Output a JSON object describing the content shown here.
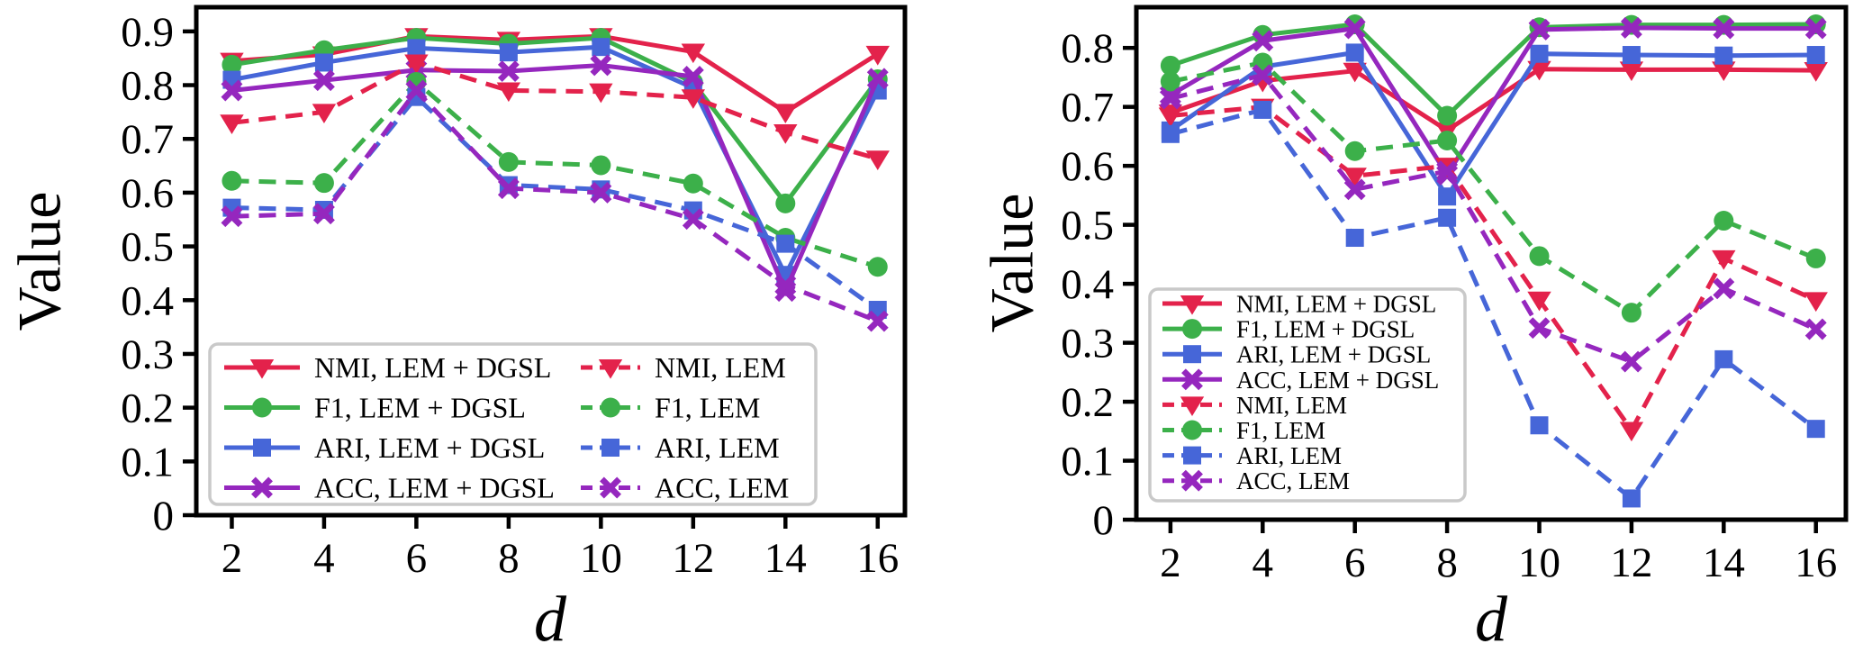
{
  "chart_data": [
    {
      "type": "line",
      "title": "",
      "xlabel": "d",
      "ylabel": "Value",
      "x": [
        2,
        4,
        6,
        8,
        10,
        12,
        14,
        16
      ],
      "xticklabels": [
        "2",
        "4",
        "6",
        "8",
        "10",
        "12",
        "14",
        "16"
      ],
      "yticks": [
        0,
        0.1,
        0.2,
        0.3,
        0.4,
        0.5,
        0.6,
        0.7,
        0.8,
        0.9
      ],
      "yticklabels": [
        "0",
        "0.1",
        "0.2",
        "0.3",
        "0.4",
        "0.5",
        "0.6",
        "0.7",
        "0.8",
        "0.9"
      ],
      "xlim": [
        1.23,
        16.59
      ],
      "ylim": [
        0,
        0.945
      ],
      "grid": false,
      "legend": {
        "position": "lower left",
        "columns": 2
      },
      "series": [
        {
          "name": "NMI, LEM + DGSL",
          "color": "#E3224B",
          "linestyle": "solid",
          "marker": "triangle-down",
          "values": [
            0.845,
            0.857,
            0.891,
            0.884,
            0.891,
            0.862,
            0.75,
            0.858
          ]
        },
        {
          "name": "F1, LEM + DGSL",
          "color": "#3CB04A",
          "linestyle": "solid",
          "marker": "circle",
          "values": [
            0.838,
            0.865,
            0.888,
            0.877,
            0.888,
            0.805,
            0.58,
            0.811
          ]
        },
        {
          "name": "ARI, LEM + DGSL",
          "color": "#4666D8",
          "linestyle": "solid",
          "marker": "square",
          "values": [
            0.81,
            0.842,
            0.869,
            0.861,
            0.871,
            0.795,
            0.447,
            0.79
          ]
        },
        {
          "name": "ACC, LEM + DGSL",
          "color": "#9527BE",
          "linestyle": "solid",
          "marker": "x-thick",
          "values": [
            0.79,
            0.809,
            0.828,
            0.826,
            0.837,
            0.816,
            0.417,
            0.812
          ]
        },
        {
          "name": "NMI, LEM",
          "color": "#E3224B",
          "linestyle": "dashed",
          "marker": "triangle-down",
          "values": [
            0.73,
            0.75,
            0.842,
            0.79,
            0.788,
            0.777,
            0.712,
            0.663
          ]
        },
        {
          "name": "F1, LEM",
          "color": "#3CB04A",
          "linestyle": "dashed",
          "marker": "circle",
          "values": [
            0.622,
            0.618,
            0.806,
            0.657,
            0.651,
            0.617,
            0.516,
            0.462
          ]
        },
        {
          "name": "ARI, LEM",
          "color": "#4666D8",
          "linestyle": "dashed",
          "marker": "square",
          "values": [
            0.572,
            0.568,
            0.778,
            0.614,
            0.606,
            0.567,
            0.505,
            0.382
          ]
        },
        {
          "name": "ACC, LEM",
          "color": "#9527BE",
          "linestyle": "dashed",
          "marker": "x-thick",
          "values": [
            0.556,
            0.561,
            0.79,
            0.608,
            0.6,
            0.551,
            0.428,
            0.361
          ]
        }
      ]
    },
    {
      "type": "line",
      "title": "",
      "xlabel": "d",
      "ylabel": "Value",
      "x": [
        2,
        4,
        6,
        8,
        10,
        12,
        14,
        16
      ],
      "xticklabels": [
        "2",
        "4",
        "6",
        "8",
        "10",
        "12",
        "14",
        "16"
      ],
      "yticks": [
        0,
        0.1,
        0.2,
        0.3,
        0.4,
        0.5,
        0.6,
        0.7,
        0.8
      ],
      "yticklabels": [
        "0",
        "0.1",
        "0.2",
        "0.3",
        "0.4",
        "0.5",
        "0.6",
        "0.7",
        "0.8"
      ],
      "xlim": [
        1.26,
        16.65
      ],
      "ylim": [
        0,
        0.869
      ],
      "grid": false,
      "legend": {
        "position": "center left",
        "columns": 1
      },
      "series": [
        {
          "name": "NMI, LEM + DGSL",
          "color": "#E3224B",
          "linestyle": "solid",
          "marker": "triangle-down",
          "values": [
            0.69,
            0.744,
            0.761,
            0.66,
            0.764,
            0.763,
            0.763,
            0.762
          ]
        },
        {
          "name": "F1, LEM + DGSL",
          "color": "#3CB04A",
          "linestyle": "solid",
          "marker": "circle",
          "values": [
            0.77,
            0.822,
            0.84,
            0.685,
            0.835,
            0.839,
            0.839,
            0.84
          ]
        },
        {
          "name": "ARI, LEM + DGSL",
          "color": "#4666D8",
          "linestyle": "solid",
          "marker": "square",
          "values": [
            0.66,
            0.768,
            0.792,
            0.548,
            0.79,
            0.788,
            0.787,
            0.788
          ]
        },
        {
          "name": "ACC, LEM + DGSL",
          "color": "#9527BE",
          "linestyle": "solid",
          "marker": "x-thick",
          "values": [
            0.72,
            0.812,
            0.833,
            0.585,
            0.831,
            0.834,
            0.833,
            0.833
          ]
        },
        {
          "name": "NMI, LEM",
          "color": "#E3224B",
          "linestyle": "dashed",
          "marker": "triangle-down",
          "values": [
            0.685,
            0.7,
            0.583,
            0.6,
            0.373,
            0.152,
            0.443,
            0.372
          ]
        },
        {
          "name": "F1, LEM",
          "color": "#3CB04A",
          "linestyle": "dashed",
          "marker": "circle",
          "values": [
            0.743,
            0.775,
            0.625,
            0.643,
            0.447,
            0.351,
            0.507,
            0.443
          ]
        },
        {
          "name": "ARI, LEM",
          "color": "#4666D8",
          "linestyle": "dashed",
          "marker": "square",
          "values": [
            0.654,
            0.695,
            0.478,
            0.512,
            0.16,
            0.036,
            0.272,
            0.154
          ]
        },
        {
          "name": "ACC, LEM",
          "color": "#9527BE",
          "linestyle": "dashed",
          "marker": "x-thick",
          "values": [
            0.714,
            0.754,
            0.56,
            0.591,
            0.325,
            0.268,
            0.392,
            0.323
          ]
        }
      ]
    }
  ],
  "style": {
    "axis_color": "#000000",
    "background": "#ffffff",
    "legend_border_color": "#c9c9c9",
    "legend_fill": "#ffffff"
  }
}
